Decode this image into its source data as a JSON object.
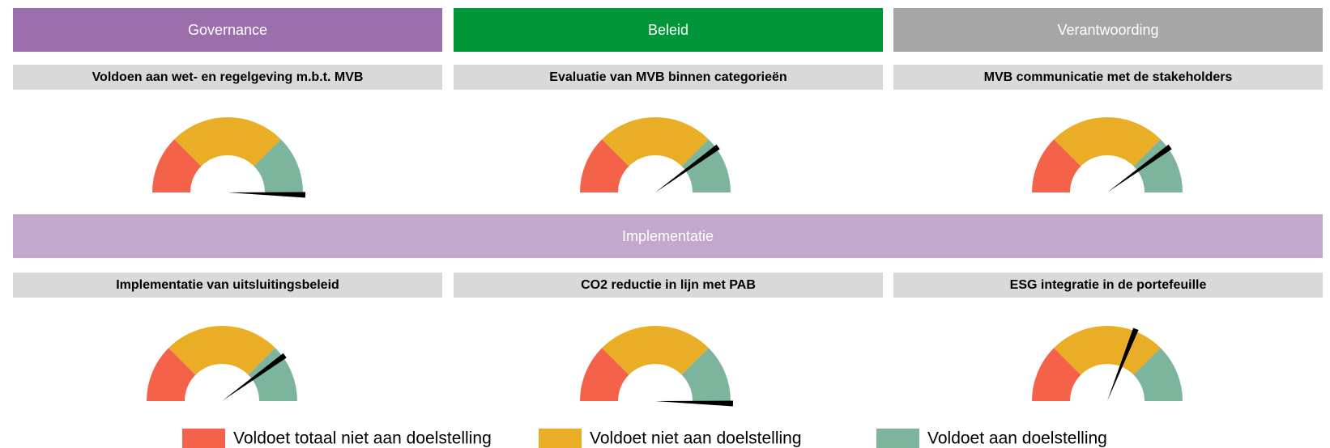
{
  "sections": [
    {
      "title": "Governance",
      "color": "#9b6fab"
    },
    {
      "title": "Beleid",
      "color": "#009639"
    },
    {
      "title": "Verantwoording",
      "color": "#a6a6a6"
    },
    {
      "title": "Implementatie",
      "color": "#c3a8cd"
    }
  ],
  "zones": {
    "names": [
      "Voldoet totaal niet aan doelstelling",
      "Voldoet niet aan doelstelling",
      "Voldoet aan doelstelling"
    ],
    "colors": [
      "#f4624a",
      "#e9ae26",
      "#7db49c"
    ]
  },
  "chart_data": [
    {
      "type": "gauge",
      "title": "Voldoen aan wet- en regelgeving m.b.t. MVB",
      "bands": [
        0,
        25,
        75,
        100
      ],
      "value": 101
    },
    {
      "type": "gauge",
      "title": "Evaluatie van MVB binnen categorieën",
      "bands": [
        0,
        25,
        75,
        100
      ],
      "value": 80
    },
    {
      "type": "gauge",
      "title": "MVB communicatie met de stakeholders",
      "bands": [
        0,
        25,
        75,
        100
      ],
      "value": 80
    },
    {
      "type": "gauge",
      "title": "Implementatie van uitsluitingsbeleid",
      "bands": [
        0,
        25,
        75,
        100
      ],
      "value": 80
    },
    {
      "type": "gauge",
      "title": "CO2 reductie in lijn met PAB",
      "bands": [
        0,
        25,
        75,
        100
      ],
      "value": 101
    },
    {
      "type": "gauge",
      "title": "ESG integratie in de portefeuille",
      "bands": [
        0,
        25,
        75,
        100
      ],
      "value": 62
    }
  ]
}
